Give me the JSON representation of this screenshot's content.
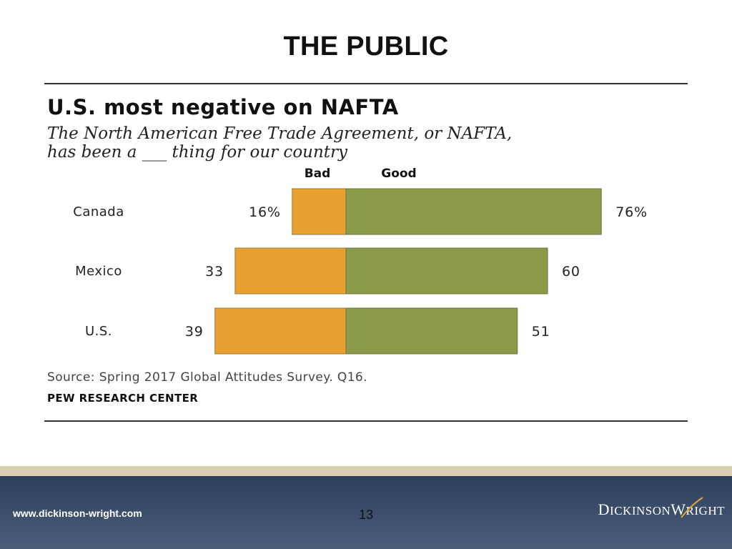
{
  "slide": {
    "title": "THE PUBLIC",
    "page_number": "13"
  },
  "footer": {
    "url": "www.dickinson-wright.com",
    "logo_text": "DICKINSONWRIGHT"
  },
  "chart_data": {
    "type": "bar",
    "title": "U.S. most negative on NAFTA",
    "subtitle_line1": "The North American Free Trade Agreement, or NAFTA,",
    "subtitle_line2": "has been a ___ thing for our country",
    "categories": [
      "Canada",
      "Mexico",
      "U.S."
    ],
    "series": [
      {
        "name": "Bad",
        "values": [
          16,
          33,
          39
        ],
        "labels": [
          "16%",
          "33",
          "39"
        ],
        "color": "#e8a030"
      },
      {
        "name": "Good",
        "values": [
          76,
          60,
          51
        ],
        "labels": [
          "76%",
          "60",
          "51"
        ],
        "color": "#8a9a48"
      }
    ],
    "source": "Source: Spring 2017 Global Attitudes Survey. Q16.",
    "organization": "PEW RESEARCH CENTER",
    "grid": false,
    "legend": "top"
  }
}
